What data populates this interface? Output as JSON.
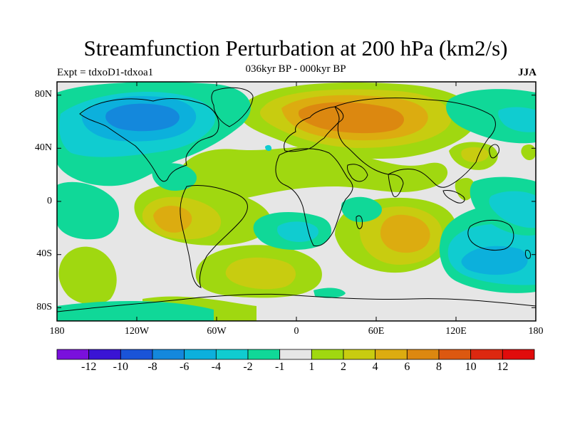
{
  "header": {
    "title": "Streamfunction Perturbation at 200 hPa (km2/s)",
    "subtitle": "036kyr BP - 000kyr BP",
    "experiment": "Expt = tdxoD1-tdxoa1",
    "season": "JJA"
  },
  "map": {
    "projection": "cylindrical equidistant",
    "lon_range": [
      -180,
      180
    ],
    "lat_range": [
      -90,
      90
    ],
    "lat_labels": [
      "80N",
      "40N",
      "0",
      "40S",
      "80S"
    ],
    "lon_labels": [
      "180",
      "120W",
      "60W",
      "0",
      "60E",
      "120E",
      "180"
    ],
    "background_color": "#e6e6e6",
    "coastline_color": "#000000"
  },
  "colorbar": {
    "labels": [
      "-12",
      "-10",
      "-8",
      "-6",
      "-4",
      "-2",
      "-1",
      "1",
      "2",
      "4",
      "6",
      "8",
      "10",
      "12"
    ],
    "colors": [
      "#7a10dc",
      "#3a14d4",
      "#1a54d8",
      "#1488dc",
      "#0cb0dc",
      "#10ccd0",
      "#10d898",
      "#e6e6e6",
      "#a0d810",
      "#c8cc10",
      "#dcac10",
      "#dc8810",
      "#dc5810",
      "#dc2810",
      "#e00c0c"
    ]
  },
  "chart_data": {
    "type": "heatmap",
    "title": "Streamfunction Perturbation at 200 hPa (km2/s)",
    "subtitle": "036kyr BP - 000kyr BP",
    "units": "km2/s",
    "contour_levels": [
      -12,
      -10,
      -8,
      -6,
      -4,
      -2,
      -1,
      1,
      2,
      4,
      6,
      8,
      10,
      12
    ],
    "features": [
      {
        "name": "positive anomaly over northern Eurasia",
        "lon": 40,
        "lat": 65,
        "value": 8
      },
      {
        "name": "positive anomaly over southern Indian Ocean",
        "lon": 85,
        "lat": -22,
        "value": 6
      },
      {
        "name": "positive anomaly off west South America",
        "lon": -95,
        "lat": -12,
        "value": 6
      },
      {
        "name": "positive anomaly in South Atlantic",
        "lon": -38,
        "lat": -48,
        "value": 2
      },
      {
        "name": "positive anomaly in South Pacific",
        "lon": -150,
        "lat": -55,
        "value": 2
      },
      {
        "name": "negative anomaly over Canada",
        "lon": -100,
        "lat": 65,
        "value": -4
      },
      {
        "name": "negative anomaly near Alaska",
        "lon": -140,
        "lat": 55,
        "value": -2
      },
      {
        "name": "negative anomaly in Southern Ocean south of Australia",
        "lon": 150,
        "lat": -45,
        "value": -4
      },
      {
        "name": "negative anomaly in western Pacific",
        "lon": 165,
        "lat": -15,
        "value": -2
      },
      {
        "name": "negative anomaly in South Atlantic",
        "lon": -5,
        "lat": -28,
        "value": -2
      }
    ]
  }
}
